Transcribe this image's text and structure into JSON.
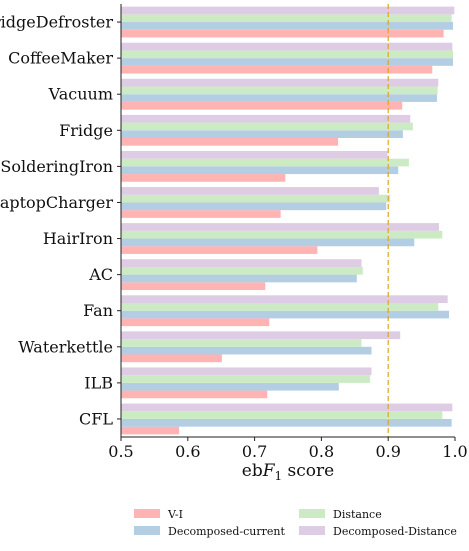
{
  "chart_data": {
    "type": "bar",
    "orientation": "horizontal",
    "categories": [
      "FridgeDefroster",
      "CoffeeMaker",
      "Vacuum",
      "Fridge",
      "SolderingIron",
      "LaptopCharger",
      "HairIron",
      "AC",
      "Fan",
      "Waterkettle",
      "ILB",
      "CFL"
    ],
    "series": [
      {
        "name": "V-I",
        "color": "#ffb3b3",
        "values": [
          0.983,
          0.966,
          0.921,
          0.825,
          0.746,
          0.739,
          0.794,
          0.716,
          0.722,
          0.651,
          0.719,
          0.587
        ]
      },
      {
        "name": "Decomposed-current",
        "color": "#b3cde3",
        "values": [
          0.997,
          0.997,
          0.973,
          0.922,
          0.915,
          0.897,
          0.939,
          0.853,
          0.991,
          0.875,
          0.826,
          0.995
        ]
      },
      {
        "name": "Distance",
        "color": "#ccebc5",
        "values": [
          0.995,
          0.997,
          0.974,
          0.937,
          0.931,
          0.903,
          0.981,
          0.862,
          0.975,
          0.86,
          0.873,
          0.981
        ]
      },
      {
        "name": "Decomposed-Distance",
        "color": "#decbe4",
        "values": [
          0.999,
          0.996,
          0.975,
          0.933,
          0.899,
          0.886,
          0.976,
          0.86,
          0.989,
          0.918,
          0.875,
          0.996
        ]
      }
    ],
    "xlabel": "ebF1 score",
    "xlim": [
      0.5,
      1.0
    ],
    "xticks": [
      "0.5",
      "0.6",
      "0.7",
      "0.8",
      "0.9",
      "1.0"
    ],
    "reference_line": {
      "x": 0.9,
      "color": "#daa520",
      "style": "dashed"
    },
    "grid": false,
    "legend": {
      "placement": "bottom-center",
      "columns": 2
    }
  }
}
